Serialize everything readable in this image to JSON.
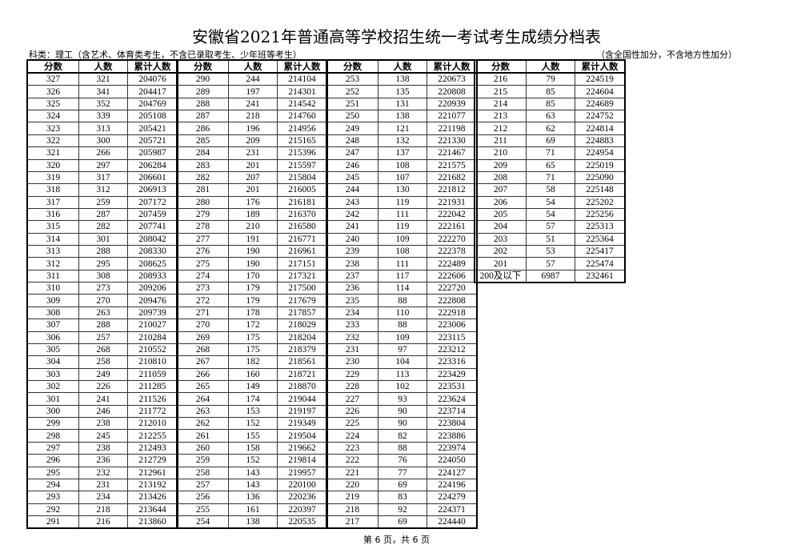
{
  "title": "安徽省2021年普通高等学校招生统一考试考生成绩分档表",
  "note_left": "科类：理工（含艺术、体育类考生，不含已录取考生、少年班等考生）",
  "note_right": "（含全国性加分，不含地方性加分）",
  "headers": [
    "分数",
    "人数",
    "累计人数"
  ],
  "groups": [
    [
      [
        "327",
        "321",
        "204076"
      ],
      [
        "326",
        "341",
        "204417"
      ],
      [
        "325",
        "352",
        "204769"
      ],
      [
        "324",
        "339",
        "205108"
      ],
      [
        "323",
        "313",
        "205421"
      ],
      [
        "322",
        "300",
        "205721"
      ],
      [
        "321",
        "266",
        "205987"
      ],
      [
        "320",
        "297",
        "206284"
      ],
      [
        "319",
        "317",
        "206601"
      ],
      [
        "318",
        "312",
        "206913"
      ],
      [
        "317",
        "259",
        "207172"
      ],
      [
        "316",
        "287",
        "207459"
      ],
      [
        "315",
        "282",
        "207741"
      ],
      [
        "314",
        "301",
        "208042"
      ],
      [
        "313",
        "288",
        "208330"
      ],
      [
        "312",
        "295",
        "208625"
      ],
      [
        "311",
        "308",
        "208933"
      ],
      [
        "310",
        "273",
        "209206"
      ],
      [
        "309",
        "270",
        "209476"
      ],
      [
        "308",
        "263",
        "209739"
      ],
      [
        "307",
        "288",
        "210027"
      ],
      [
        "306",
        "257",
        "210284"
      ],
      [
        "305",
        "268",
        "210552"
      ],
      [
        "304",
        "258",
        "210810"
      ],
      [
        "303",
        "249",
        "211059"
      ],
      [
        "302",
        "226",
        "211285"
      ],
      [
        "301",
        "241",
        "211526"
      ],
      [
        "300",
        "246",
        "211772"
      ],
      [
        "299",
        "238",
        "212010"
      ],
      [
        "298",
        "245",
        "212255"
      ],
      [
        "297",
        "238",
        "212493"
      ],
      [
        "296",
        "236",
        "212729"
      ],
      [
        "295",
        "232",
        "212961"
      ],
      [
        "294",
        "231",
        "213192"
      ],
      [
        "293",
        "234",
        "213426"
      ],
      [
        "292",
        "218",
        "213644"
      ],
      [
        "291",
        "216",
        "213860"
      ]
    ],
    [
      [
        "290",
        "244",
        "214104"
      ],
      [
        "289",
        "197",
        "214301"
      ],
      [
        "288",
        "241",
        "214542"
      ],
      [
        "287",
        "218",
        "214760"
      ],
      [
        "286",
        "196",
        "214956"
      ],
      [
        "285",
        "209",
        "215165"
      ],
      [
        "284",
        "231",
        "215396"
      ],
      [
        "283",
        "201",
        "215597"
      ],
      [
        "282",
        "207",
        "215804"
      ],
      [
        "281",
        "201",
        "216005"
      ],
      [
        "280",
        "176",
        "216181"
      ],
      [
        "279",
        "189",
        "216370"
      ],
      [
        "278",
        "210",
        "216580"
      ],
      [
        "277",
        "191",
        "216771"
      ],
      [
        "276",
        "190",
        "216961"
      ],
      [
        "275",
        "190",
        "217151"
      ],
      [
        "274",
        "170",
        "217321"
      ],
      [
        "273",
        "179",
        "217500"
      ],
      [
        "272",
        "179",
        "217679"
      ],
      [
        "271",
        "178",
        "217857"
      ],
      [
        "270",
        "172",
        "218029"
      ],
      [
        "269",
        "175",
        "218204"
      ],
      [
        "268",
        "175",
        "218379"
      ],
      [
        "267",
        "182",
        "218561"
      ],
      [
        "266",
        "160",
        "218721"
      ],
      [
        "265",
        "149",
        "218870"
      ],
      [
        "264",
        "174",
        "219044"
      ],
      [
        "263",
        "153",
        "219197"
      ],
      [
        "262",
        "152",
        "219349"
      ],
      [
        "261",
        "155",
        "219504"
      ],
      [
        "260",
        "158",
        "219662"
      ],
      [
        "259",
        "152",
        "219814"
      ],
      [
        "258",
        "143",
        "219957"
      ],
      [
        "257",
        "143",
        "220100"
      ],
      [
        "256",
        "136",
        "220236"
      ],
      [
        "255",
        "161",
        "220397"
      ],
      [
        "254",
        "138",
        "220535"
      ]
    ],
    [
      [
        "253",
        "138",
        "220673"
      ],
      [
        "252",
        "135",
        "220808"
      ],
      [
        "251",
        "131",
        "220939"
      ],
      [
        "250",
        "138",
        "221077"
      ],
      [
        "249",
        "121",
        "221198"
      ],
      [
        "248",
        "132",
        "221330"
      ],
      [
        "247",
        "137",
        "221467"
      ],
      [
        "246",
        "108",
        "221575"
      ],
      [
        "245",
        "107",
        "221682"
      ],
      [
        "244",
        "130",
        "221812"
      ],
      [
        "243",
        "119",
        "221931"
      ],
      [
        "242",
        "111",
        "222042"
      ],
      [
        "241",
        "119",
        "222161"
      ],
      [
        "240",
        "109",
        "222270"
      ],
      [
        "239",
        "108",
        "222378"
      ],
      [
        "238",
        "111",
        "222489"
      ],
      [
        "237",
        "117",
        "222606"
      ],
      [
        "236",
        "114",
        "222720"
      ],
      [
        "235",
        "88",
        "222808"
      ],
      [
        "234",
        "110",
        "222918"
      ],
      [
        "233",
        "88",
        "223006"
      ],
      [
        "232",
        "109",
        "223115"
      ],
      [
        "231",
        "97",
        "223212"
      ],
      [
        "230",
        "104",
        "223316"
      ],
      [
        "229",
        "113",
        "223429"
      ],
      [
        "228",
        "102",
        "223531"
      ],
      [
        "227",
        "93",
        "223624"
      ],
      [
        "226",
        "90",
        "223714"
      ],
      [
        "225",
        "90",
        "223804"
      ],
      [
        "224",
        "82",
        "223886"
      ],
      [
        "223",
        "88",
        "223974"
      ],
      [
        "222",
        "76",
        "224050"
      ],
      [
        "221",
        "77",
        "224127"
      ],
      [
        "220",
        "69",
        "224196"
      ],
      [
        "219",
        "83",
        "224279"
      ],
      [
        "218",
        "92",
        "224371"
      ],
      [
        "217",
        "69",
        "224440"
      ]
    ],
    [
      [
        "216",
        "79",
        "224519"
      ],
      [
        "215",
        "85",
        "224604"
      ],
      [
        "214",
        "85",
        "224689"
      ],
      [
        "213",
        "63",
        "224752"
      ],
      [
        "212",
        "62",
        "224814"
      ],
      [
        "211",
        "69",
        "224883"
      ],
      [
        "210",
        "71",
        "224954"
      ],
      [
        "209",
        "65",
        "225019"
      ],
      [
        "208",
        "71",
        "225090"
      ],
      [
        "207",
        "58",
        "225148"
      ],
      [
        "206",
        "54",
        "225202"
      ],
      [
        "205",
        "54",
        "225256"
      ],
      [
        "204",
        "57",
        "225313"
      ],
      [
        "203",
        "51",
        "225364"
      ],
      [
        "202",
        "53",
        "225417"
      ],
      [
        "201",
        "57",
        "225474"
      ],
      [
        "200及以下",
        "6987",
        "232461"
      ]
    ]
  ],
  "footer": "第 6 页，共 6 页"
}
